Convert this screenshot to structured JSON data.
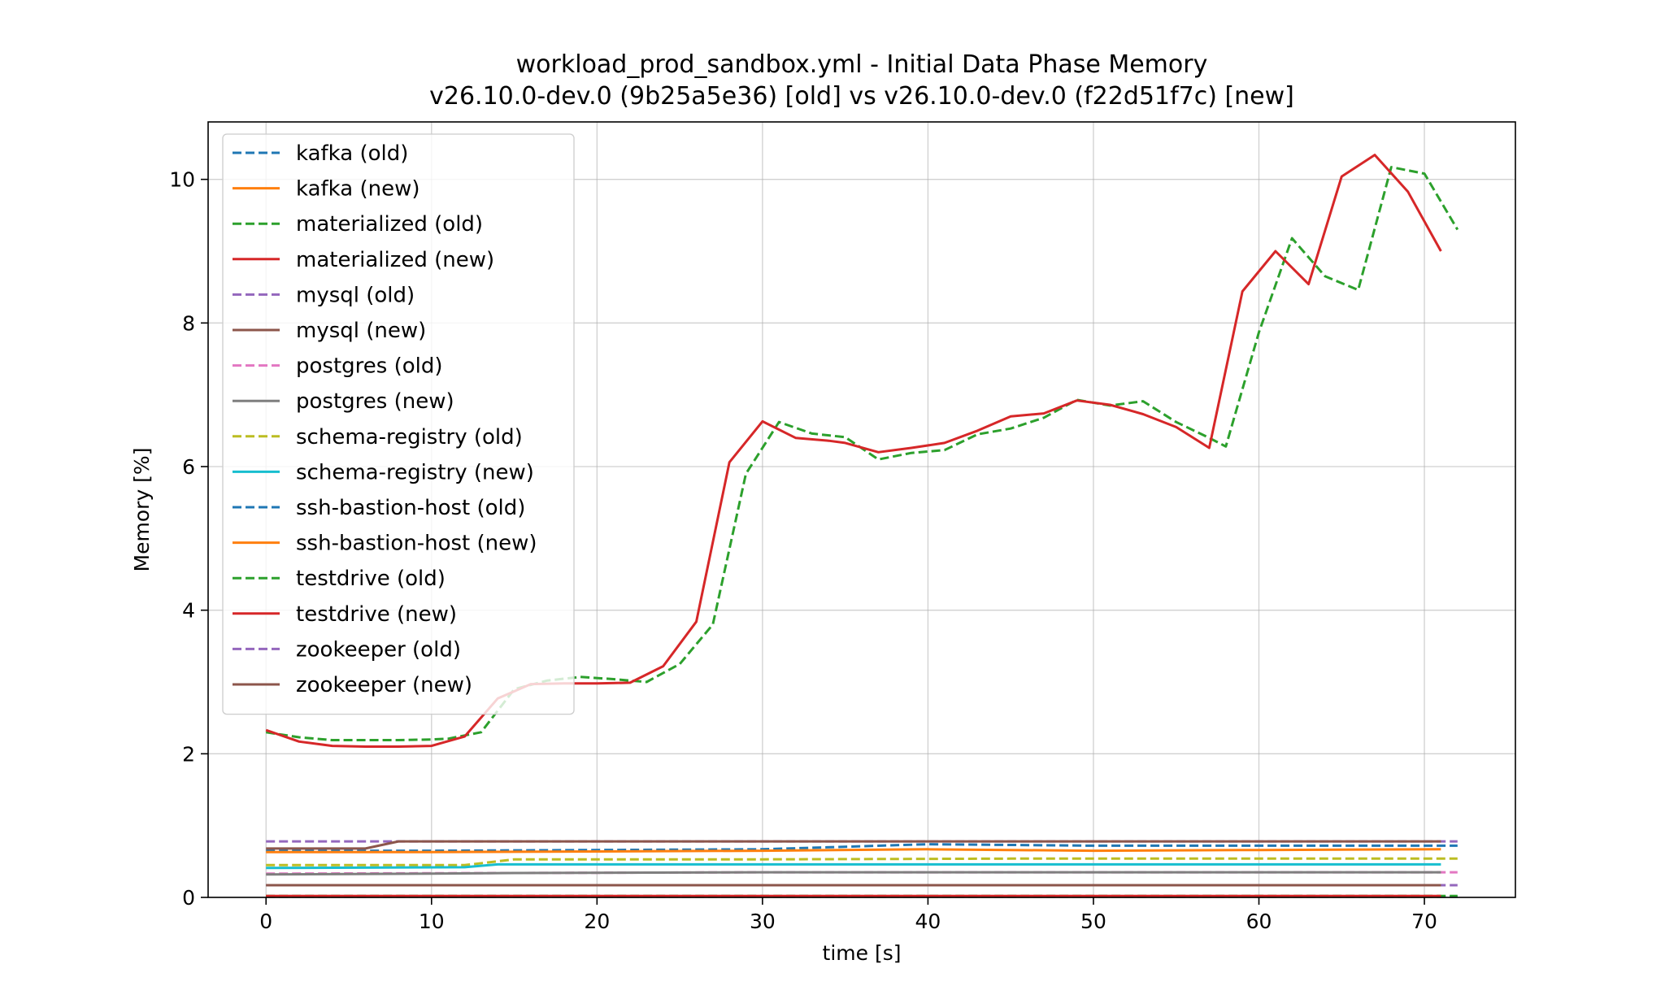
{
  "chart_data": {
    "type": "line",
    "title": "workload_prod_sandbox.yml - Initial Data Phase Memory",
    "subtitle": "v26.10.0-dev.0 (9b25a5e36) [old] vs v26.10.0-dev.0 (f22d51f7c) [new]",
    "xlabel": "time [s]",
    "ylabel": "Memory [%]",
    "xlim": [
      -3.5,
      75.5
    ],
    "ylim": [
      0,
      10.8
    ],
    "xticks": [
      0,
      10,
      20,
      30,
      40,
      50,
      60,
      70
    ],
    "yticks": [
      0,
      2,
      4,
      6,
      8,
      10
    ],
    "grid": true,
    "legend_position": "top-left",
    "series": [
      {
        "name": "kafka (old)",
        "color": "#1f77b4",
        "style": "dashed",
        "x": [
          0,
          10,
          20,
          30,
          40,
          50,
          60,
          72
        ],
        "y": [
          0.65,
          0.65,
          0.66,
          0.67,
          0.74,
          0.72,
          0.72,
          0.72
        ]
      },
      {
        "name": "kafka (new)",
        "color": "#ff7f0e",
        "style": "solid",
        "x": [
          0,
          10,
          20,
          30,
          40,
          50,
          60,
          71
        ],
        "y": [
          0.63,
          0.63,
          0.64,
          0.65,
          0.67,
          0.65,
          0.66,
          0.67
        ]
      },
      {
        "name": "materialized (old)",
        "color": "#2ca02c",
        "style": "dashed",
        "x": [
          0,
          2,
          4,
          6,
          8,
          10,
          11,
          13,
          15,
          17,
          19,
          21,
          23,
          25,
          27,
          29,
          31,
          33,
          35,
          37,
          39,
          41,
          43,
          45,
          47,
          49,
          51,
          53,
          55,
          57,
          58,
          60,
          62,
          64,
          66,
          68,
          70,
          72
        ],
        "y": [
          2.3,
          2.23,
          2.19,
          2.19,
          2.19,
          2.2,
          2.21,
          2.3,
          2.9,
          3.02,
          3.07,
          3.04,
          3.0,
          3.25,
          3.8,
          5.9,
          6.62,
          6.46,
          6.41,
          6.1,
          6.19,
          6.23,
          6.45,
          6.53,
          6.68,
          6.93,
          6.85,
          6.91,
          6.62,
          6.4,
          6.28,
          7.87,
          9.18,
          8.65,
          8.46,
          10.17,
          10.08,
          9.3
        ]
      },
      {
        "name": "materialized (new)",
        "color": "#d62728",
        "style": "solid",
        "x": [
          0,
          2,
          4,
          6,
          8,
          10,
          12,
          14,
          16,
          18,
          20,
          22,
          24,
          26,
          28,
          30,
          32,
          34,
          35,
          37,
          39,
          41,
          43,
          45,
          47,
          49,
          51,
          53,
          55,
          57,
          59,
          61,
          63,
          65,
          67,
          69,
          71
        ],
        "y": [
          2.33,
          2.17,
          2.11,
          2.1,
          2.1,
          2.11,
          2.24,
          2.77,
          2.97,
          2.98,
          2.98,
          2.99,
          3.22,
          3.84,
          6.06,
          6.63,
          6.4,
          6.36,
          6.33,
          6.2,
          6.26,
          6.33,
          6.5,
          6.7,
          6.74,
          6.92,
          6.86,
          6.73,
          6.55,
          6.26,
          8.44,
          9.0,
          8.54,
          10.04,
          10.34,
          9.83,
          9.0
        ]
      },
      {
        "name": "mysql (old)",
        "color": "#9467bd",
        "style": "dashed",
        "x": [
          0,
          72
        ],
        "y": [
          0.17,
          0.17
        ]
      },
      {
        "name": "mysql (new)",
        "color": "#8c564b",
        "style": "solid",
        "x": [
          0,
          71
        ],
        "y": [
          0.17,
          0.17
        ]
      },
      {
        "name": "postgres (old)",
        "color": "#e377c2",
        "style": "dashed",
        "x": [
          0,
          15,
          30,
          45,
          60,
          72
        ],
        "y": [
          0.33,
          0.34,
          0.35,
          0.35,
          0.35,
          0.35
        ]
      },
      {
        "name": "postgres (new)",
        "color": "#7f7f7f",
        "style": "solid",
        "x": [
          0,
          10,
          15,
          30,
          45,
          60,
          71
        ],
        "y": [
          0.32,
          0.33,
          0.34,
          0.35,
          0.35,
          0.35,
          0.35
        ]
      },
      {
        "name": "schema-registry (old)",
        "color": "#bcbd22",
        "style": "dashed",
        "x": [
          0,
          12,
          15,
          30,
          45,
          60,
          72
        ],
        "y": [
          0.45,
          0.45,
          0.53,
          0.53,
          0.54,
          0.54,
          0.54
        ]
      },
      {
        "name": "schema-registry (new)",
        "color": "#17becf",
        "style": "solid",
        "x": [
          0,
          12,
          14,
          30,
          45,
          60,
          71
        ],
        "y": [
          0.41,
          0.42,
          0.46,
          0.46,
          0.46,
          0.46,
          0.46
        ]
      },
      {
        "name": "ssh-bastion-host (old)",
        "color": "#1f77b4",
        "style": "dashed",
        "x": [
          0,
          72
        ],
        "y": [
          0.01,
          0.01
        ]
      },
      {
        "name": "ssh-bastion-host (new)",
        "color": "#ff7f0e",
        "style": "solid",
        "x": [
          0,
          71
        ],
        "y": [
          0.01,
          0.01
        ]
      },
      {
        "name": "testdrive (old)",
        "color": "#2ca02c",
        "style": "dashed",
        "x": [
          0,
          72
        ],
        "y": [
          0.02,
          0.02
        ]
      },
      {
        "name": "testdrive (new)",
        "color": "#d62728",
        "style": "solid",
        "x": [
          0,
          71
        ],
        "y": [
          0.02,
          0.02
        ]
      },
      {
        "name": "zookeeper (old)",
        "color": "#9467bd",
        "style": "dashed",
        "x": [
          0,
          72
        ],
        "y": [
          0.78,
          0.78
        ]
      },
      {
        "name": "zookeeper (new)",
        "color": "#8c564b",
        "style": "solid",
        "x": [
          0,
          6,
          8,
          12,
          20,
          30,
          40,
          50,
          60,
          71
        ],
        "y": [
          0.68,
          0.68,
          0.78,
          0.78,
          0.78,
          0.78,
          0.78,
          0.78,
          0.78,
          0.78
        ]
      }
    ]
  }
}
